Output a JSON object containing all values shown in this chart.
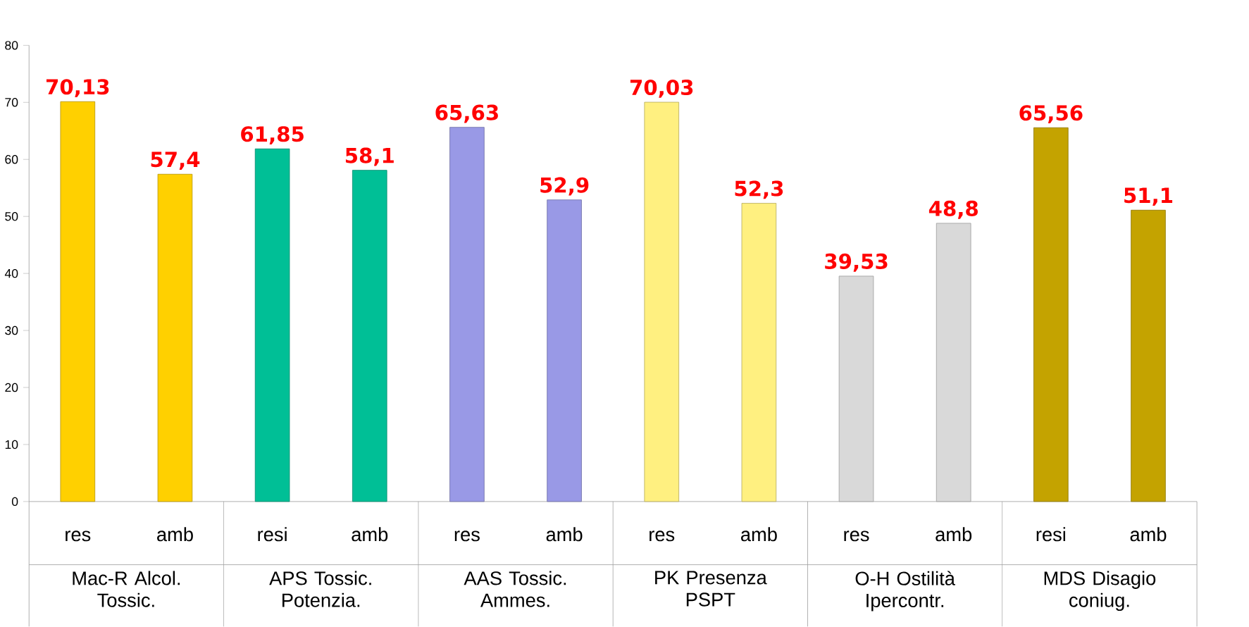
{
  "chart_data": {
    "type": "bar",
    "categories": [
      "res",
      "amb",
      "resi",
      "amb",
      "res",
      "amb",
      "res",
      "amb",
      "res",
      "amb",
      "resi",
      "amb"
    ],
    "values": [
      70.13,
      57.4,
      61.85,
      58.1,
      65.63,
      52.9,
      70.03,
      52.3,
      39.53,
      48.8,
      65.56,
      51.1
    ],
    "value_labels": [
      "70,13",
      "57,4",
      "61,85",
      "58,1",
      "65,63",
      "52,9",
      "70,03",
      "52,3",
      "39,53",
      "48,8",
      "65,56",
      "51,1"
    ],
    "colors": [
      "#ffd000",
      "#ffd000",
      "#00bf96",
      "#00bf96",
      "#9999e6",
      "#9999e6",
      "#fff080",
      "#fff080",
      "#d9d9d9",
      "#d9d9d9",
      "#c4a300",
      "#c4a300"
    ],
    "annotations": [
      "Mac-R Alcol. Tossic.",
      "APS Tossic. Potenzia.",
      "AAS Tossic. Ammes.",
      "PK Presenza PSPT",
      "O-H Ostilità Ipercontr.",
      "MDS Disagio coniug."
    ],
    "ylim": [
      0,
      80
    ],
    "yticks": [
      0,
      10,
      20,
      30,
      40,
      50,
      60,
      70,
      80
    ]
  }
}
